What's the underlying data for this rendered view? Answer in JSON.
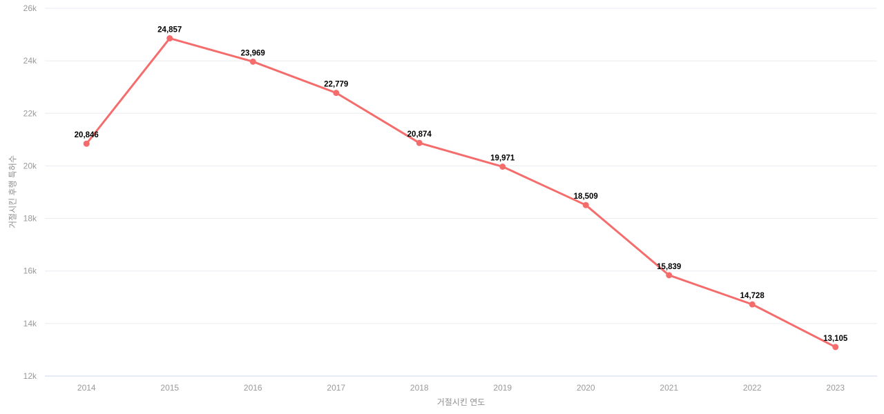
{
  "chart_data": {
    "type": "line",
    "title": "",
    "x": [
      "2014",
      "2015",
      "2016",
      "2017",
      "2018",
      "2019",
      "2020",
      "2021",
      "2022",
      "2023"
    ],
    "values": [
      20846,
      24857,
      23969,
      22779,
      20874,
      19971,
      18509,
      15839,
      14728,
      13105
    ],
    "point_labels": [
      "20,846",
      "24,857",
      "23,969",
      "22,779",
      "20,874",
      "19,971",
      "18,509",
      "15,839",
      "14,728",
      "13,105"
    ],
    "xlabel": "거절시킨 연도",
    "ylabel": "거절시킨 후행 특허수",
    "ylim": [
      12000,
      26000
    ],
    "ytick_step": 2000,
    "ytick_labels": [
      "12k",
      "14k",
      "16k",
      "18k",
      "20k",
      "22k",
      "24k",
      "26k"
    ],
    "grid": true,
    "legend_position": "none",
    "colors": {
      "line": "#f56c6c",
      "point": "#f56c6c",
      "axis_line": "#ccd6eb",
      "gridline": "#e8ebf0",
      "tick_label": "#999999",
      "axis_title": "#8f8f8f",
      "data_label": "#000000",
      "background": "#ffffff"
    }
  }
}
